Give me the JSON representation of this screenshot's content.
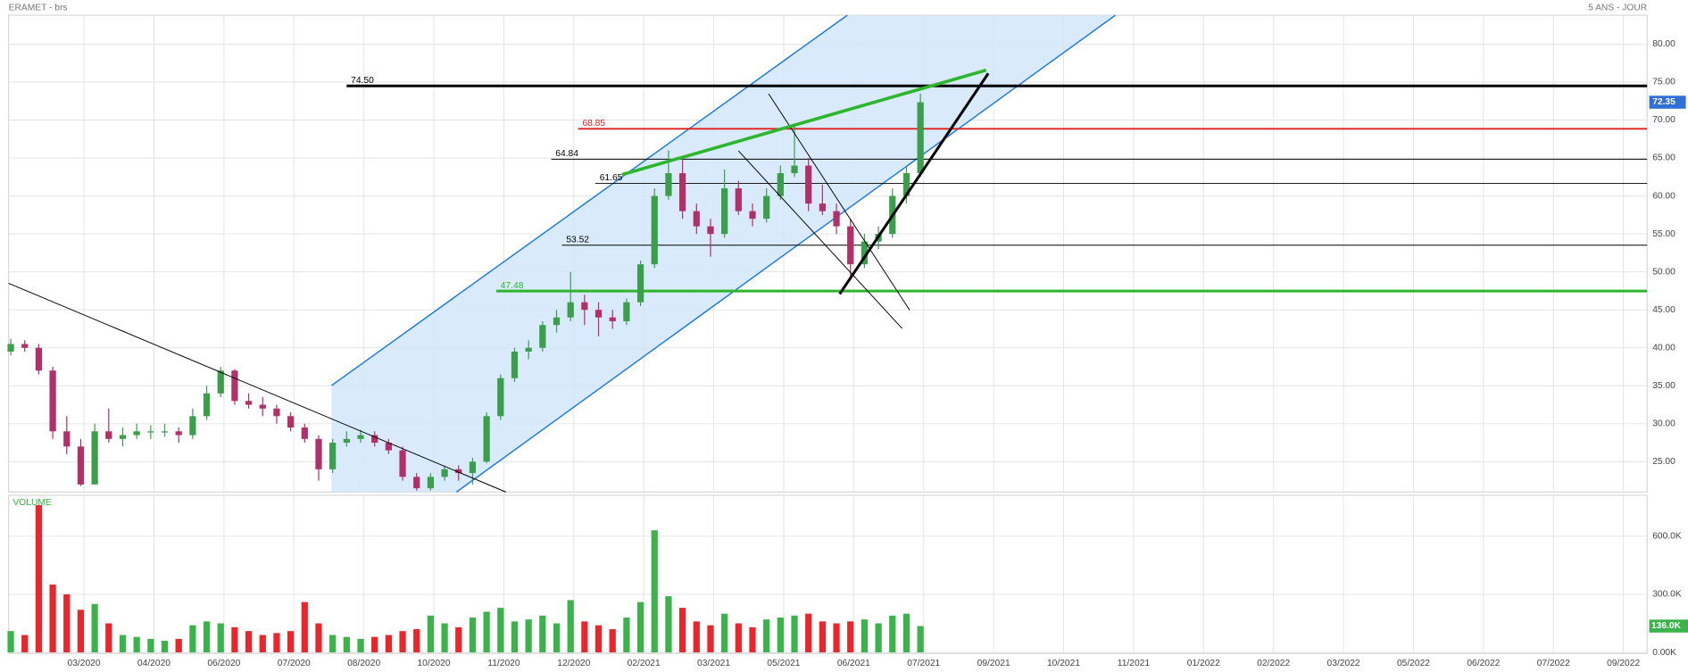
{
  "chart_data": {
    "type": "candlestick",
    "title": "ERAMET - brs",
    "period": "5 ANS - JOUR",
    "categories": [
      "03/2020",
      "04/2020",
      "06/2020",
      "07/2020",
      "08/2020",
      "10/2020",
      "11/2020",
      "12/2020",
      "02/2021",
      "03/2021",
      "05/2021",
      "06/2021",
      "07/2021",
      "09/2021",
      "10/2021",
      "11/2021",
      "01/2022",
      "02/2022",
      "03/2022",
      "05/2022",
      "06/2022",
      "07/2022",
      "09/2022"
    ],
    "candles": [
      [
        39.5,
        41.2,
        39,
        40.5
      ],
      [
        40.5,
        41,
        39.5,
        40
      ],
      [
        40,
        40.5,
        36.5,
        37
      ],
      [
        37,
        37.5,
        28,
        29
      ],
      [
        29,
        31,
        26,
        27
      ],
      [
        27,
        28,
        21.8,
        22
      ],
      [
        22,
        30,
        22,
        29
      ],
      [
        29,
        32,
        27.5,
        28
      ],
      [
        28,
        29.5,
        27,
        28.5
      ],
      [
        28.5,
        30,
        28,
        29
      ],
      [
        29,
        29.8,
        28,
        29
      ],
      [
        29,
        30,
        28.3,
        29
      ],
      [
        29,
        29.5,
        27.5,
        28.5
      ],
      [
        28.5,
        32,
        28,
        31
      ],
      [
        31,
        35,
        30.5,
        34
      ],
      [
        34,
        37.5,
        33.5,
        37
      ],
      [
        37,
        37.2,
        32.5,
        33
      ],
      [
        33,
        34,
        32,
        32.5
      ],
      [
        32.5,
        33.5,
        31,
        32
      ],
      [
        32,
        32.5,
        30,
        31
      ],
      [
        31,
        31.5,
        29,
        29.5
      ],
      [
        29.5,
        30,
        27.5,
        28
      ],
      [
        28,
        28.5,
        22.5,
        24
      ],
      [
        24,
        28,
        23.5,
        27.5
      ],
      [
        27.5,
        29,
        27,
        28
      ],
      [
        28,
        29.2,
        27.5,
        28.5
      ],
      [
        28.5,
        29,
        27,
        27.5
      ],
      [
        27.5,
        28,
        26,
        26.5
      ],
      [
        26.5,
        27,
        22.5,
        23
      ],
      [
        23,
        23.5,
        21.2,
        21.5
      ],
      [
        21.5,
        23.5,
        21.2,
        23
      ],
      [
        23,
        24.5,
        22.5,
        24
      ],
      [
        24,
        24.5,
        22.5,
        23.5
      ],
      [
        23.5,
        25.5,
        22,
        25
      ],
      [
        25,
        31.5,
        24.8,
        31
      ],
      [
        31,
        36.5,
        30.5,
        36
      ],
      [
        36,
        40,
        35.5,
        39.5
      ],
      [
        39.5,
        41,
        38.5,
        40
      ],
      [
        40,
        43.5,
        39.5,
        43
      ],
      [
        43,
        45,
        42,
        44
      ],
      [
        44,
        50,
        43.5,
        46
      ],
      [
        46,
        47,
        43,
        45
      ],
      [
        45,
        46,
        41.5,
        44
      ],
      [
        44,
        45,
        42.5,
        43.5
      ],
      [
        43.5,
        46.5,
        43,
        46
      ],
      [
        46,
        51.5,
        45.5,
        51
      ],
      [
        51,
        61,
        50.5,
        60
      ],
      [
        60,
        66,
        59.5,
        63
      ],
      [
        63,
        65,
        57,
        58
      ],
      [
        58,
        59,
        55,
        56
      ],
      [
        56,
        57,
        52,
        55
      ],
      [
        55,
        63.5,
        54.5,
        61
      ],
      [
        61,
        62,
        57.5,
        58
      ],
      [
        58,
        59,
        56,
        57
      ],
      [
        57,
        61,
        56.5,
        60
      ],
      [
        60,
        64,
        59.5,
        63
      ],
      [
        63,
        69.5,
        62.5,
        64
      ],
      [
        64,
        65,
        58,
        59
      ],
      [
        59,
        61.5,
        57.5,
        58
      ],
      [
        58,
        59,
        55,
        56
      ],
      [
        56,
        57,
        49.5,
        51
      ],
      [
        51,
        55,
        50.5,
        54
      ],
      [
        54,
        56,
        53,
        55
      ],
      [
        55,
        61,
        54.5,
        60
      ],
      [
        60,
        64,
        59,
        63
      ],
      [
        63,
        73.5,
        62.5,
        72.35
      ]
    ],
    "up_color": "#3a9e4a",
    "down_color": "#b03068",
    "ylim": [
      21,
      83.8
    ],
    "yticks": [
      {
        "value": 25,
        "label": "25.00"
      },
      {
        "value": 30,
        "label": "30.00"
      },
      {
        "value": 35,
        "label": "35.00"
      },
      {
        "value": 40,
        "label": "40.00"
      },
      {
        "value": 45,
        "label": "45.00"
      },
      {
        "value": 50,
        "label": "50.00"
      },
      {
        "value": 55,
        "label": "55.00"
      },
      {
        "value": 60,
        "label": "60.00"
      },
      {
        "value": 65,
        "label": "65.00"
      },
      {
        "value": 70,
        "label": "70.00"
      },
      {
        "value": 75,
        "label": "75.00"
      },
      {
        "value": 80,
        "label": "80.00"
      }
    ],
    "grid": true,
    "last_price": 72.35,
    "last_price_color": "#2f6fd6",
    "levels": [
      {
        "value": 74.5,
        "label": "74.50",
        "color": "#000000"
      },
      {
        "value": 68.85,
        "label": "68.85",
        "color": "#e0201b"
      },
      {
        "value": 64.84,
        "label": "64.84",
        "color": "#000000"
      },
      {
        "value": 61.65,
        "label": "61.65",
        "color": "#000000"
      },
      {
        "value": 53.52,
        "label": "53.52",
        "color": "#000000"
      },
      {
        "value": 47.48,
        "label": "47.48",
        "color": "#2db52d"
      }
    ],
    "volume": {
      "label": "VOLUME",
      "up_color": "#3cb34a",
      "down_color": "#e8262b",
      "values": [
        110000,
        90000,
        760000,
        350000,
        300000,
        220000,
        250000,
        150000,
        90000,
        80000,
        70000,
        60000,
        70000,
        140000,
        160000,
        150000,
        130000,
        110000,
        90000,
        100000,
        110000,
        260000,
        150000,
        90000,
        80000,
        70000,
        80000,
        90000,
        110000,
        120000,
        190000,
        150000,
        130000,
        180000,
        210000,
        230000,
        160000,
        170000,
        190000,
        150000,
        270000,
        160000,
        140000,
        120000,
        180000,
        260000,
        630000,
        290000,
        230000,
        160000,
        140000,
        200000,
        150000,
        130000,
        170000,
        180000,
        190000,
        200000,
        160000,
        150000,
        160000,
        170000,
        150000,
        190000,
        200000,
        136000
      ],
      "ylim": [
        0,
        811000
      ],
      "yticks": [
        {
          "value": 0,
          "label": "0.00K"
        },
        {
          "value": 300000,
          "label": "300.0K"
        },
        {
          "value": 600000,
          "label": "600.0K"
        }
      ],
      "last": {
        "value": 136000,
        "label": "136.0K"
      }
    }
  }
}
